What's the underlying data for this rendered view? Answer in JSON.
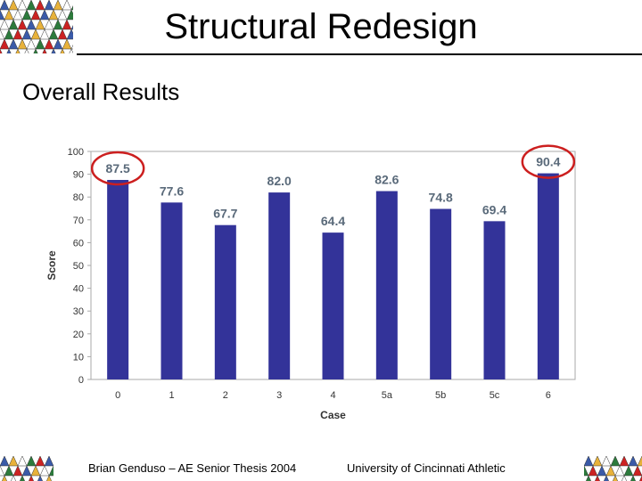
{
  "slide": {
    "title": "Structural Redesign",
    "subtitle": "Overall Results"
  },
  "footer": {
    "left": "Brian Genduso – AE Senior Thesis 2004",
    "right": "University of Cincinnati Athletic"
  },
  "colors": {
    "bar": "#333399",
    "highlight": "#cc1f1f",
    "label": "#5a6a7a",
    "axis_text": "#333333",
    "plot_border": "#aaaaaa",
    "pattern": [
      "#cc2222",
      "#e8b23a",
      "#2c7a3c",
      "#3a5aa8",
      "#ffffff"
    ]
  },
  "chart_data": {
    "type": "bar",
    "categories": [
      "0",
      "1",
      "2",
      "3",
      "4",
      "5a",
      "5b",
      "5c",
      "6"
    ],
    "values": [
      87.5,
      77.6,
      67.7,
      82.0,
      64.4,
      82.6,
      74.8,
      69.4,
      90.4
    ],
    "value_labels": [
      "87.5",
      "77.6",
      "67.7",
      "82.0",
      "64.4",
      "82.6",
      "74.8",
      "69.4",
      "90.4"
    ],
    "highlighted": [
      "0",
      "6"
    ],
    "xlabel": "Case",
    "ylabel": "Score",
    "ylim": [
      0,
      100
    ],
    "yticks": [
      0,
      10,
      20,
      30,
      40,
      50,
      60,
      70,
      80,
      90,
      100
    ],
    "grid": false,
    "legend": "none"
  }
}
